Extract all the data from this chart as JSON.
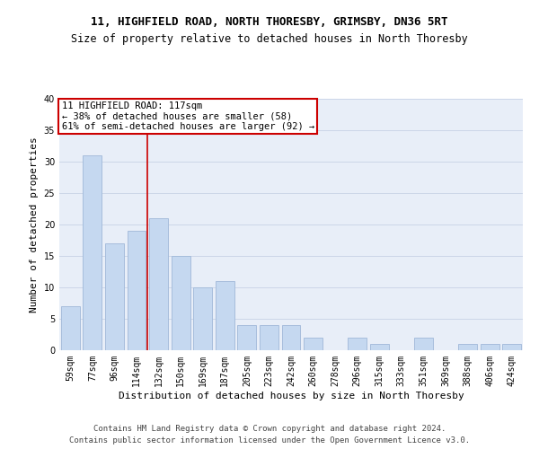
{
  "title1": "11, HIGHFIELD ROAD, NORTH THORESBY, GRIMSBY, DN36 5RT",
  "title2": "Size of property relative to detached houses in North Thoresby",
  "xlabel": "Distribution of detached houses by size in North Thoresby",
  "ylabel": "Number of detached properties",
  "categories": [
    "59sqm",
    "77sqm",
    "96sqm",
    "114sqm",
    "132sqm",
    "150sqm",
    "169sqm",
    "187sqm",
    "205sqm",
    "223sqm",
    "242sqm",
    "260sqm",
    "278sqm",
    "296sqm",
    "315sqm",
    "333sqm",
    "351sqm",
    "369sqm",
    "388sqm",
    "406sqm",
    "424sqm"
  ],
  "values": [
    7,
    31,
    17,
    19,
    21,
    15,
    10,
    11,
    4,
    4,
    4,
    2,
    0,
    2,
    1,
    0,
    2,
    0,
    1,
    1,
    1
  ],
  "bar_color": "#c5d8f0",
  "bar_edgecolor": "#a0b8d8",
  "annotation_line1": "11 HIGHFIELD ROAD: 117sqm",
  "annotation_line2": "← 38% of detached houses are smaller (58)",
  "annotation_line3": "61% of semi-detached houses are larger (92) →",
  "annotation_box_facecolor": "#ffffff",
  "annotation_box_edgecolor": "#cc0000",
  "vline_color": "#cc0000",
  "vline_x_index": 3.5,
  "ylim": [
    0,
    40
  ],
  "yticks": [
    0,
    5,
    10,
    15,
    20,
    25,
    30,
    35,
    40
  ],
  "grid_color": "#ccd6e8",
  "background_color": "#e8eef8",
  "footer1": "Contains HM Land Registry data © Crown copyright and database right 2024.",
  "footer2": "Contains public sector information licensed under the Open Government Licence v3.0.",
  "title1_fontsize": 9,
  "title2_fontsize": 8.5,
  "xlabel_fontsize": 8,
  "ylabel_fontsize": 8,
  "tick_fontsize": 7,
  "annotation_fontsize": 7.5,
  "footer_fontsize": 6.5
}
